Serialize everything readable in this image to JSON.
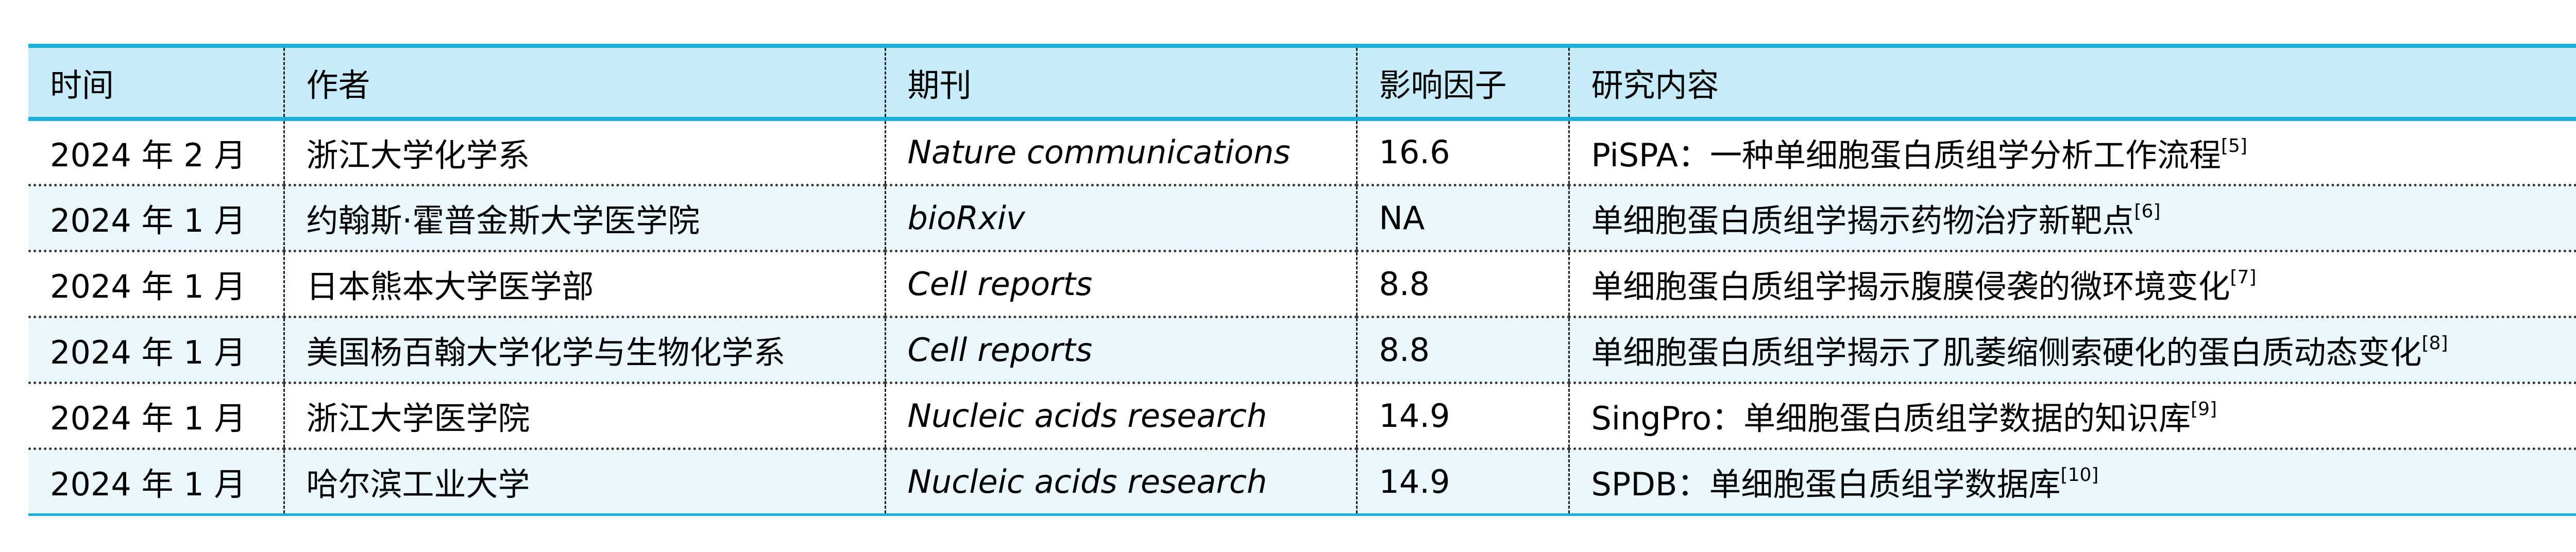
{
  "table": {
    "headers": [
      "时间",
      "作者",
      "期刊",
      "影响因子",
      "研究内容"
    ],
    "rows": [
      {
        "time": "2024 年 2 月",
        "author": "浙江大学化学系",
        "journal": "Nature communications",
        "impact": "16.6",
        "content": "PiSPA：一种单细胞蛋白质组学分析工作流程",
        "ref": "[5]"
      },
      {
        "time": "2024 年 1 月",
        "author": "约翰斯·霍普金斯大学医学院",
        "journal": "bioRxiv",
        "impact": "NA",
        "content": "单细胞蛋白质组学揭示药物治疗新靶点",
        "ref": "[6]"
      },
      {
        "time": "2024 年 1 月",
        "author": "日本熊本大学医学部",
        "journal": "Cell reports",
        "impact": "8.8",
        "content": "单细胞蛋白质组学揭示腹膜侵袭的微环境变化",
        "ref": "[7]"
      },
      {
        "time": "2024 年 1 月",
        "author": "美国杨百翰大学化学与生物化学系",
        "journal": "Cell reports",
        "impact": "8.8",
        "content": "单细胞蛋白质组学揭示了肌萎缩侧索硬化的蛋白质动态变化",
        "ref": "[8]"
      },
      {
        "time": "2024 年 1 月",
        "author": "浙江大学医学院",
        "journal": "Nucleic acids research",
        "impact": "14.9",
        "content": "SingPro：单细胞蛋白质组学数据的知识库",
        "ref": "[9]"
      },
      {
        "time": "2024 年 1 月",
        "author": "哈尔滨工业大学",
        "journal": "Nucleic acids research",
        "impact": "14.9",
        "content": "SPDB：单细胞蛋白质组学数据库",
        "ref": "[10]"
      }
    ]
  },
  "colors": {
    "header_bg": "#C7EBF8",
    "accent_border": "#1AAEDD",
    "alt_row_bg": "#EAF8FD"
  }
}
